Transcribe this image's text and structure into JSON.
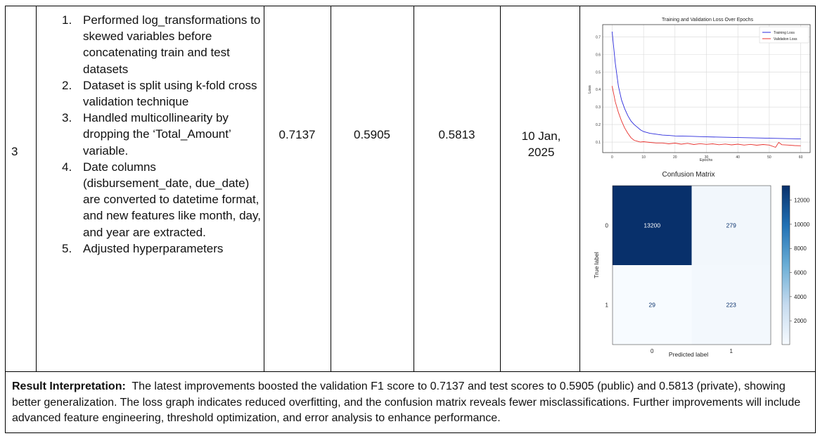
{
  "row": {
    "number": "3",
    "steps": [
      {
        "n": "1.",
        "text": "Performed log_transformations to skewed variables before concatenating train and test datasets"
      },
      {
        "n": "2.",
        "text": "Dataset is split using k-fold cross validation technique"
      },
      {
        "n": "3.",
        "text": "Handled multicollinearity by dropping the ‘Total_Amount’ variable."
      },
      {
        "n": "4.",
        "text": "Date columns (disbursement_date, due_date) are converted to datetime format, and new features like month, day, and year are extracted."
      },
      {
        "n": "5.",
        "text": "Adjusted hyperparameters"
      }
    ],
    "validation_f1": "0.7137",
    "public_score": "0.5905",
    "private_score": "0.5813",
    "date_line1": "10 Jan,",
    "date_line2": "2025"
  },
  "interpretation": {
    "label": "Result Interpretation:",
    "text": "The latest improvements boosted the validation F1 score to 0.7137 and test scores to 0.5905 (public) and 0.5813 (private), showing better generalization. The loss graph indicates reduced overfitting, and the confusion matrix reveals fewer misclassifications. Further improvements will include advanced feature engineering, threshold optimization, and error analysis to enhance performance."
  },
  "chart_data": [
    {
      "type": "line",
      "title": "Training and Validation Loss Over Epochs",
      "xlabel": "Epochs",
      "ylabel": "Loss",
      "xlim": [
        -3,
        63
      ],
      "ylim": [
        0.04,
        0.77
      ],
      "xticks": [
        0,
        10,
        20,
        30,
        40,
        50,
        60
      ],
      "yticks": [
        0.1,
        0.2,
        0.3,
        0.4,
        0.5,
        0.6,
        0.7
      ],
      "grid": true,
      "legend": "top-right",
      "series": [
        {
          "name": "Training Loss",
          "color": "#2b2bdc",
          "x": [
            0,
            1,
            2,
            3,
            4,
            5,
            6,
            7,
            8,
            9,
            10,
            12,
            14,
            16,
            18,
            20,
            25,
            30,
            35,
            40,
            45,
            50,
            55,
            60
          ],
          "values": [
            0.73,
            0.55,
            0.42,
            0.34,
            0.29,
            0.25,
            0.22,
            0.2,
            0.185,
            0.17,
            0.16,
            0.15,
            0.145,
            0.14,
            0.138,
            0.135,
            0.133,
            0.13,
            0.128,
            0.126,
            0.124,
            0.122,
            0.12,
            0.118
          ]
        },
        {
          "name": "Validation Loss",
          "color": "#e8312d",
          "x": [
            0,
            1,
            2,
            3,
            4,
            5,
            6,
            7,
            8,
            9,
            10,
            12,
            14,
            16,
            18,
            20,
            22,
            24,
            26,
            28,
            30,
            32,
            34,
            36,
            38,
            40,
            42,
            44,
            46,
            48,
            50,
            52,
            53,
            54,
            56,
            58,
            60
          ],
          "values": [
            0.42,
            0.33,
            0.27,
            0.22,
            0.18,
            0.15,
            0.125,
            0.11,
            0.105,
            0.1,
            0.102,
            0.098,
            0.095,
            0.095,
            0.09,
            0.094,
            0.088,
            0.093,
            0.086,
            0.091,
            0.087,
            0.09,
            0.085,
            0.089,
            0.084,
            0.088,
            0.083,
            0.087,
            0.082,
            0.086,
            0.083,
            0.07,
            0.098,
            0.085,
            0.083,
            0.08,
            0.079
          ]
        }
      ]
    },
    {
      "type": "heatmap",
      "title": "Confusion Matrix",
      "xlabel": "Predicted label",
      "ylabel": "True label",
      "x_labels": [
        "0",
        "1"
      ],
      "y_labels": [
        "0",
        "1"
      ],
      "values": [
        [
          13200,
          279
        ],
        [
          29,
          223
        ]
      ],
      "colorbar_ticks": [
        2000,
        4000,
        6000,
        8000,
        10000,
        12000
      ],
      "colorbar_range": [
        29,
        13200
      ],
      "colormap": "Blues"
    }
  ]
}
